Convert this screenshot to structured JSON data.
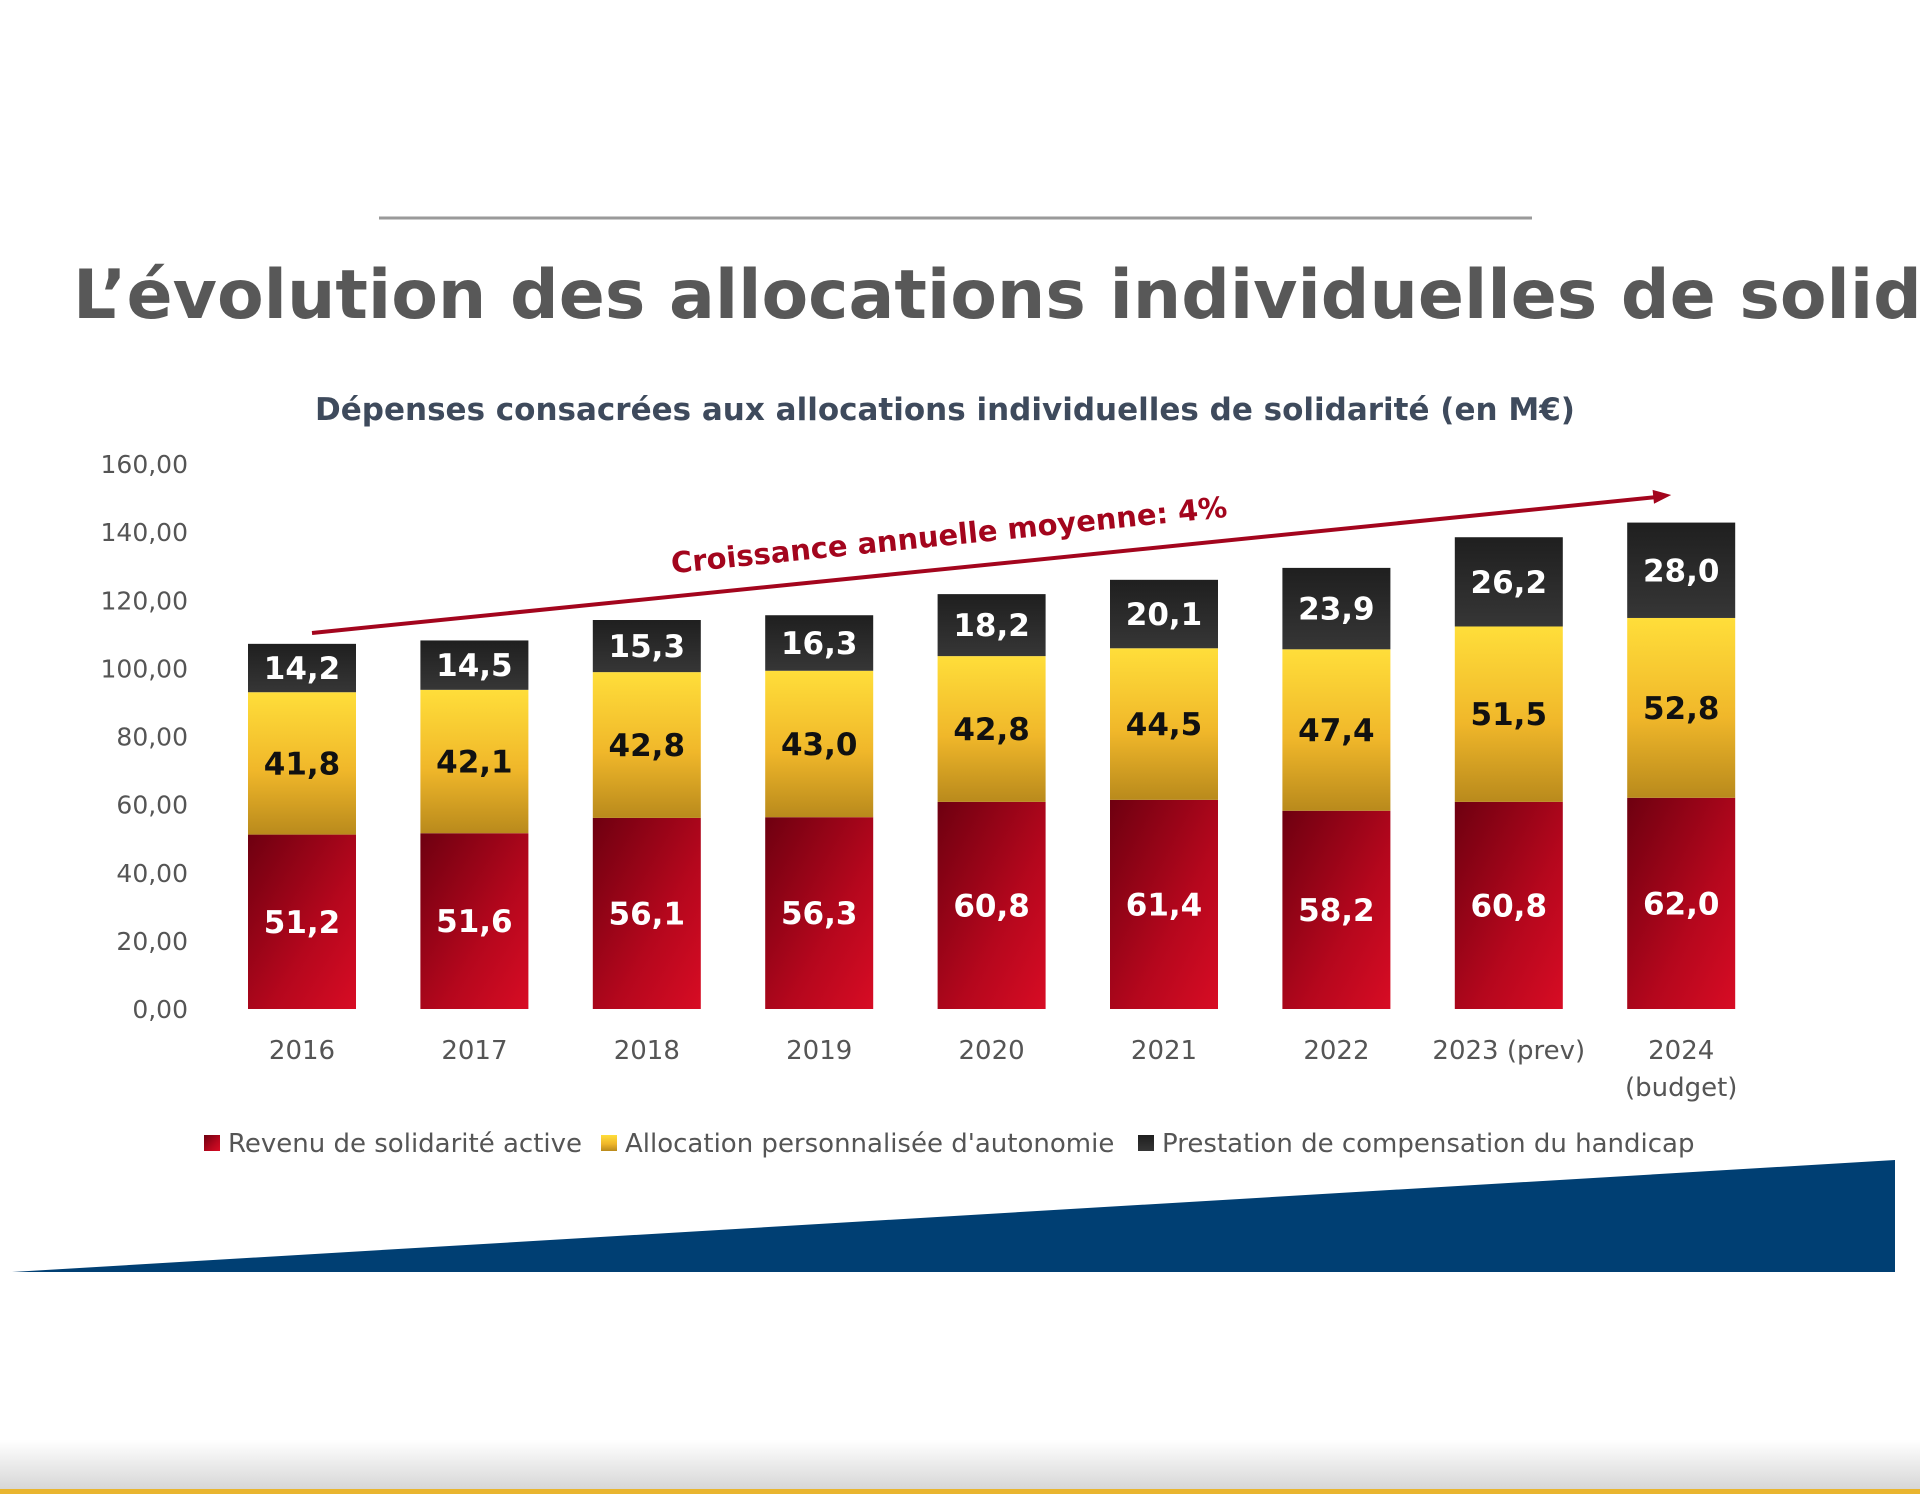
{
  "slide": {
    "title": "L’évolution des allocations individuelles de solidarité"
  },
  "colors": {
    "rsa": "#b5071d",
    "apa": "#f4c02c",
    "pch": "#2b2b2b",
    "annotation": "#a3051d",
    "footer_band": "#003f73"
  },
  "chart_data": {
    "type": "bar",
    "stacked": true,
    "title": "Dépenses consacrées aux allocations individuelles de solidarité (en M€)",
    "xlabel": "",
    "ylabel": "",
    "ylim": [
      0,
      160
    ],
    "yticks": [
      "0,00",
      "20,00",
      "40,00",
      "60,00",
      "80,00",
      "100,00",
      "120,00",
      "140,00",
      "160,00"
    ],
    "grid": false,
    "legend_position": "bottom",
    "categories": [
      "2016",
      "2017",
      "2018",
      "2019",
      "2020",
      "2021",
      "2022",
      "2023 (prev)",
      "2024 (budget)"
    ],
    "category_lines": [
      [
        "2016"
      ],
      [
        "2017"
      ],
      [
        "2018"
      ],
      [
        "2019"
      ],
      [
        "2020"
      ],
      [
        "2021"
      ],
      [
        "2022"
      ],
      [
        "2023 (prev)"
      ],
      [
        "2024",
        "(budget)"
      ]
    ],
    "series": [
      {
        "name": "Revenu de solidarité active",
        "color": "#b5071d",
        "values": [
          51.2,
          51.6,
          56.1,
          56.3,
          60.8,
          61.4,
          58.2,
          60.8,
          62.0
        ],
        "labels": [
          "51,2",
          "51,6",
          "56,1",
          "56,3",
          "60,8",
          "61,4",
          "58,2",
          "60,8",
          "62,0"
        ]
      },
      {
        "name": "Allocation personnalisée d'autonomie",
        "color": "#f4c02c",
        "values": [
          41.8,
          42.1,
          42.8,
          43.0,
          42.8,
          44.5,
          47.4,
          51.5,
          52.8
        ],
        "labels": [
          "41,8",
          "42,1",
          "42,8",
          "43,0",
          "42,8",
          "44,5",
          "47,4",
          "51,5",
          "52,8"
        ]
      },
      {
        "name": "Prestation de compensation du handicap",
        "color": "#2b2b2b",
        "values": [
          14.2,
          14.5,
          15.3,
          16.3,
          18.2,
          20.1,
          23.9,
          26.2,
          28.0
        ],
        "labels": [
          "14,2",
          "14,5",
          "15,3",
          "16,3",
          "18,2",
          "20,1",
          "23,9",
          "26,2",
          "28,0"
        ]
      }
    ],
    "annotations": [
      {
        "text": "Croissance annuelle moyenne: 4%",
        "type": "arrow",
        "from_category": "2016",
        "to_category": "2024 (budget)"
      }
    ]
  }
}
